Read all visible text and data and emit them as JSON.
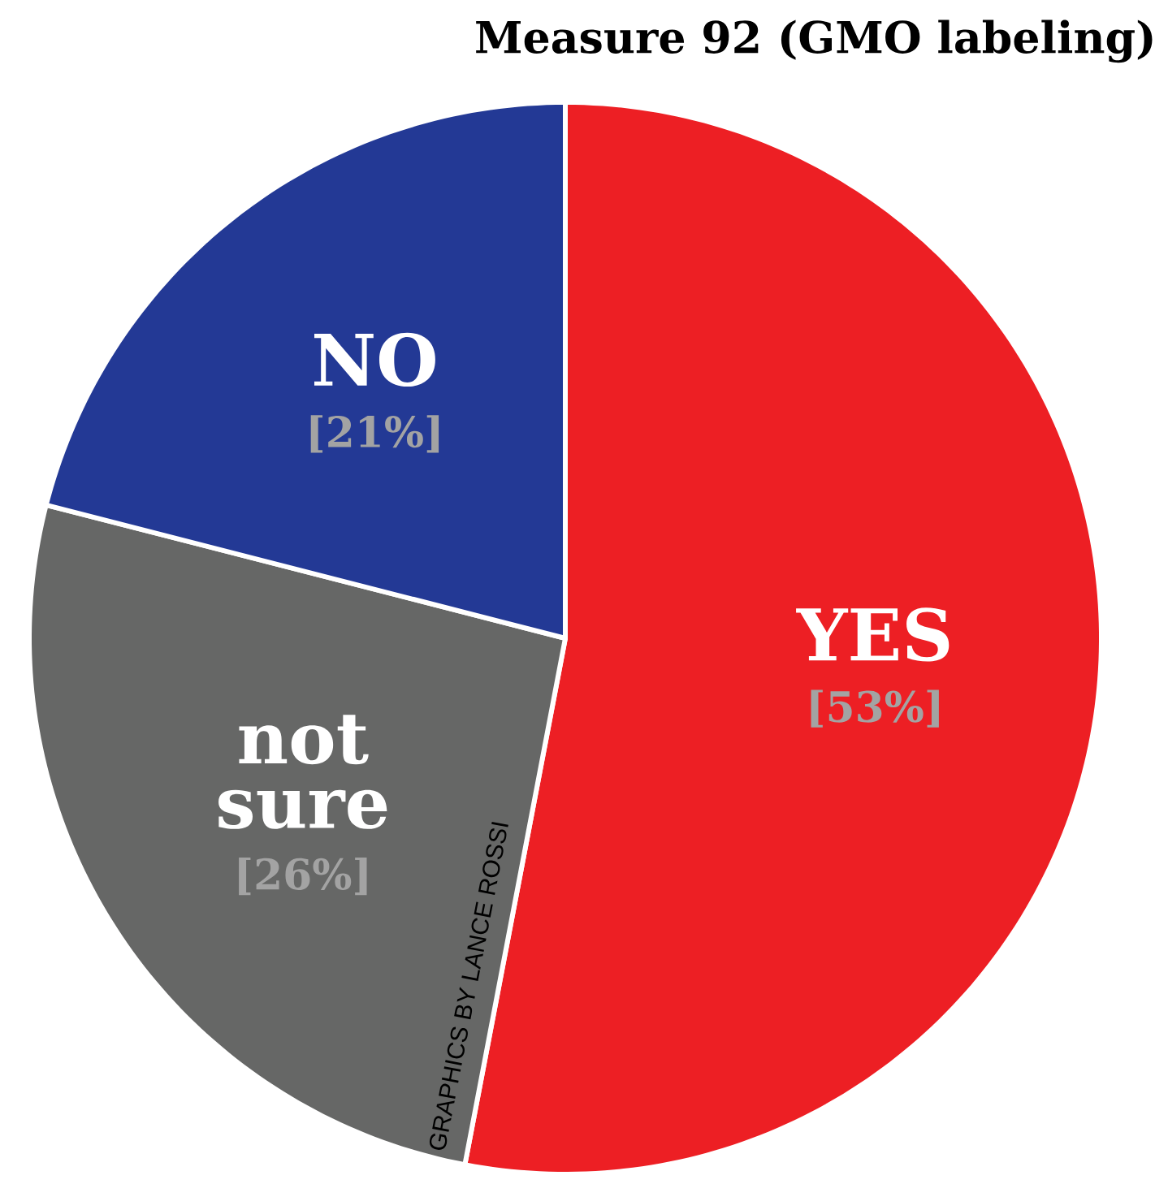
{
  "chart_data": {
    "type": "pie",
    "title": "Measure 92 (GMO labeling)",
    "categories": [
      "YES",
      "not sure",
      "NO"
    ],
    "values": [
      53,
      26,
      21
    ],
    "value_labels": [
      "[53%]",
      "[26%]",
      "[21%]"
    ],
    "colors": [
      "#ed1f24",
      "#666766",
      "#233995"
    ],
    "annotations": [
      "GRAPHICS BY LANCE ROSSI"
    ]
  }
}
